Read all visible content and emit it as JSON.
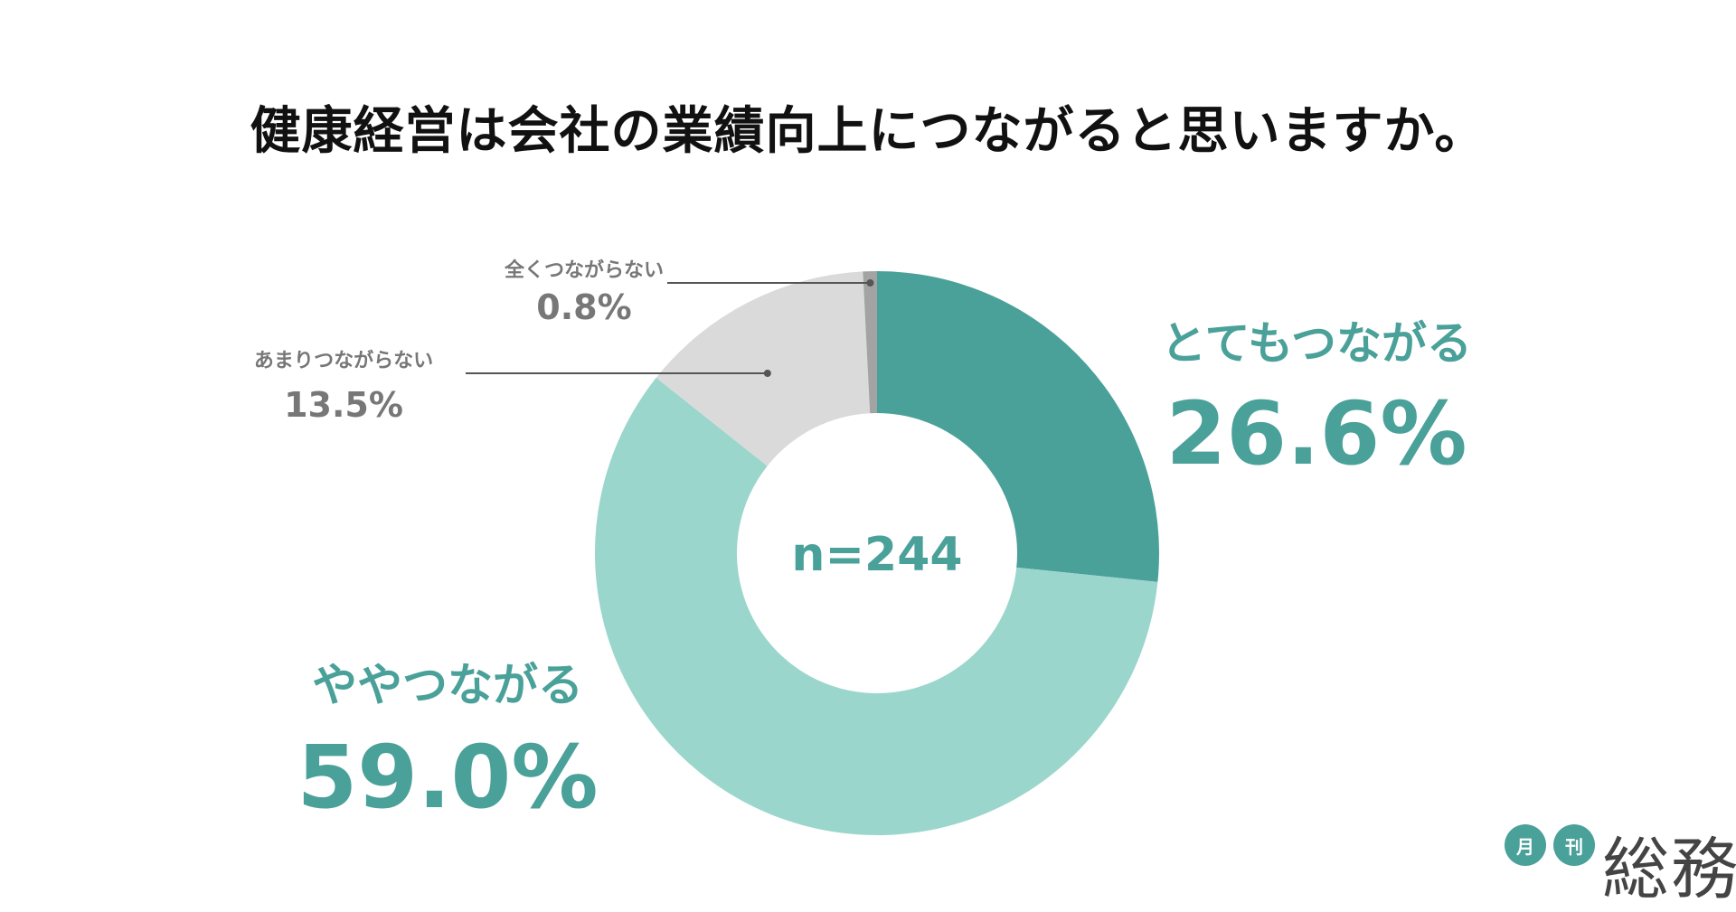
{
  "chart_data": {
    "type": "pie",
    "title": "健康経営は会社の業績向上につながると思いますか。",
    "center_label": "n=244",
    "slices": [
      {
        "label": "とてもつながる",
        "value": 26.6,
        "display": "26.6%",
        "color": "#4aa199"
      },
      {
        "label": "ややつながる",
        "value": 59.0,
        "display": "59.0%",
        "color": "#9bd6cd"
      },
      {
        "label": "あまりつながらない",
        "value": 13.5,
        "display": "13.5%",
        "color": "#dadada"
      },
      {
        "label": "全くつながらない",
        "value": 0.8,
        "display": "0.8%",
        "color": "#a3a3a3"
      }
    ]
  },
  "logo": {
    "circle1": "月",
    "circle2": "刊",
    "text": "総務"
  }
}
